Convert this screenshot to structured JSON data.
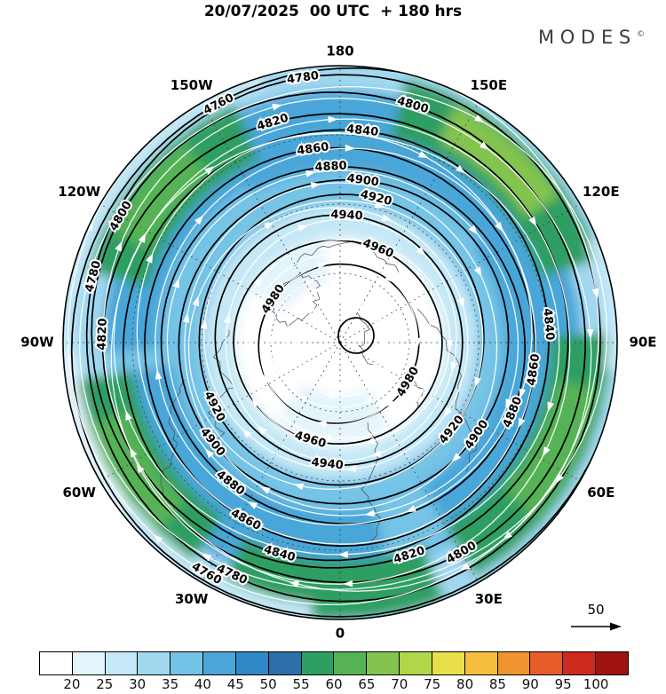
{
  "header": {
    "title": "20/07/2025  00 UTC  + 180 hrs",
    "logo_text": "MODES",
    "logo_superscript": "©"
  },
  "chart_data": {
    "type": "contour-map",
    "projection": "polar",
    "title": "20/07/2025  00 UTC  + 180 hrs",
    "longitude_labels": [
      "180",
      "150E",
      "120E",
      "90E",
      "60E",
      "30E",
      "0",
      "30W",
      "60W",
      "90W",
      "120W",
      "150W"
    ],
    "contour_levels": [
      4760,
      4780,
      4800,
      4820,
      4840,
      4860,
      4880,
      4900,
      4920,
      4940,
      4960,
      4980
    ],
    "contour_interval": 20,
    "reference_arrow_label": "50",
    "colorbar": {
      "tick_labels": [
        "20",
        "25",
        "30",
        "35",
        "40",
        "45",
        "50",
        "55",
        "60",
        "65",
        "70",
        "75",
        "80",
        "85",
        "90",
        "95",
        "100"
      ],
      "colors": [
        "#FFFFFF",
        "#E3F4FB",
        "#C5E8F6",
        "#A0D8F0",
        "#74C3E6",
        "#4AA6D8",
        "#3188C6",
        "#2D6FA8",
        "#2E9E62",
        "#55B354",
        "#83C44F",
        "#B1D64A",
        "#E8DF4A",
        "#F6BE3F",
        "#F0942F",
        "#E55C28",
        "#CE2A1D",
        "#9E1412"
      ]
    },
    "colors": {
      "contour": "#000000",
      "streamline": "#FFFFFF",
      "graticule": "#333333",
      "coastline": "#4A4A4A",
      "background": "#FFFFFF"
    }
  }
}
